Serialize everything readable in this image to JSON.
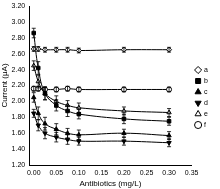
{
  "chart_data": {
    "type": "line",
    "x_label": "Antibiotics (mg/L)",
    "y_label": "Current (μA)",
    "x": [
      0,
      0.01,
      0.025,
      0.05,
      0.075,
      0.1,
      0.2,
      0.3
    ],
    "xlim": [
      -0.01,
      0.35
    ],
    "xticks": [
      {
        "value": 0,
        "label": "0.00"
      },
      {
        "value": 0.05,
        "label": "0.05"
      },
      {
        "value": 0.1,
        "label": "0.10"
      },
      {
        "value": 0.15,
        "label": "0.15"
      },
      {
        "value": 0.2,
        "label": "0.20"
      },
      {
        "value": 0.25,
        "label": "0.25"
      },
      {
        "value": 0.3,
        "label": "0.30"
      },
      {
        "value": 0.35,
        "label": "0.35"
      }
    ],
    "ylim": [
      1.2,
      3.2
    ],
    "yticks": [
      {
        "value": 1.2,
        "label": "1.20"
      },
      {
        "value": 1.4,
        "label": "1.40"
      },
      {
        "value": 1.6,
        "label": "1.60"
      },
      {
        "value": 1.8,
        "label": "1.80"
      },
      {
        "value": 2.0,
        "label": "2.00"
      },
      {
        "value": 2.2,
        "label": "2.20"
      },
      {
        "value": 2.4,
        "label": "2.40"
      },
      {
        "value": 2.6,
        "label": "2.60"
      },
      {
        "value": 2.8,
        "label": "2.80"
      },
      {
        "value": 3.0,
        "label": "3.00"
      },
      {
        "value": 3.2,
        "label": "3.20"
      }
    ],
    "grid": false,
    "legend": "right",
    "series": [
      {
        "name": "a",
        "color": "#000000",
        "marker": "open-diamond",
        "line_style": "solid",
        "values": [
          2.66,
          2.66,
          2.65,
          2.65,
          2.65,
          2.64,
          2.65,
          2.65
        ],
        "errors": [
          0.03,
          0.03,
          0.03,
          0.03,
          0.03,
          0.03,
          0.03,
          0.03
        ]
      },
      {
        "name": "b",
        "color": "#000000",
        "marker": "square",
        "line_style": "solid",
        "values": [
          2.86,
          2.42,
          2.1,
          1.95,
          1.88,
          1.84,
          1.78,
          1.75
        ],
        "errors": [
          0.06,
          0.08,
          0.08,
          0.07,
          0.07,
          0.06,
          0.06,
          0.05
        ]
      },
      {
        "name": "c",
        "color": "#000000",
        "marker": "triangle",
        "line_style": "solid",
        "values": [
          2.05,
          1.85,
          1.72,
          1.65,
          1.6,
          1.58,
          1.6,
          1.57
        ],
        "errors": [
          0.06,
          0.08,
          0.08,
          0.07,
          0.06,
          0.06,
          0.05,
          0.05
        ]
      },
      {
        "name": "d",
        "color": "#000000",
        "marker": "triangle-down",
        "line_style": "solid",
        "values": [
          1.85,
          1.7,
          1.6,
          1.55,
          1.52,
          1.5,
          1.5,
          1.48
        ],
        "errors": [
          0.05,
          0.07,
          0.07,
          0.06,
          0.06,
          0.05,
          0.05,
          0.05
        ]
      },
      {
        "name": "e",
        "color": "#000000",
        "marker": "open-triangle",
        "line_style": "solid",
        "values": [
          2.45,
          2.25,
          2.1,
          2.0,
          1.95,
          1.92,
          1.88,
          1.86
        ],
        "errors": [
          0.06,
          0.08,
          0.08,
          0.07,
          0.06,
          0.06,
          0.05,
          0.05
        ]
      },
      {
        "name": "f",
        "color": "#000000",
        "marker": "open-circle",
        "line_style": "solid",
        "values": [
          2.16,
          2.16,
          2.15,
          2.15,
          2.16,
          2.15,
          2.15,
          2.15
        ],
        "errors": [
          0.03,
          0.03,
          0.03,
          0.03,
          0.03,
          0.03,
          0.03,
          0.03
        ]
      }
    ]
  }
}
